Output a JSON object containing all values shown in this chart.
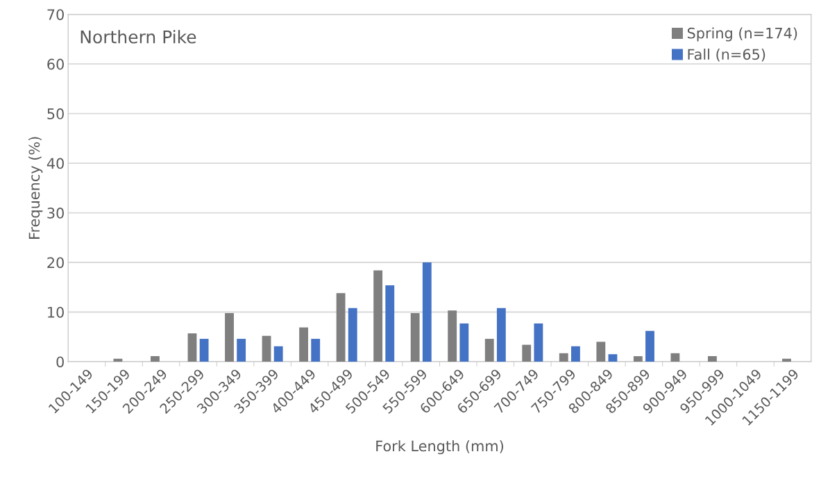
{
  "chart_data": {
    "type": "bar",
    "title": "Northern Pike",
    "xlabel": "Fork Length (mm)",
    "ylabel": "Frequency (%)",
    "categories": [
      "100-149",
      "150-199",
      "200-249",
      "250-299",
      "300-349",
      "350-399",
      "400-449",
      "450-499",
      "500-549",
      "550-599",
      "600-649",
      "650-699",
      "700-749",
      "750-799",
      "800-849",
      "850-899",
      "900-949",
      "950-999",
      "1000-1049",
      "1150-1199"
    ],
    "series": [
      {
        "name": "Spring (n=174)",
        "color": "#7f7f7f",
        "values": [
          0,
          0.6,
          1.1,
          5.7,
          9.8,
          5.2,
          6.9,
          13.8,
          18.4,
          9.8,
          10.3,
          4.6,
          3.4,
          1.7,
          4.0,
          1.1,
          1.7,
          1.1,
          0,
          0.6
        ]
      },
      {
        "name": "Fall (n=65)",
        "color": "#4472c4",
        "values": [
          0,
          0,
          0,
          4.6,
          4.6,
          3.1,
          4.6,
          10.8,
          15.4,
          20.0,
          7.7,
          10.8,
          7.7,
          3.1,
          1.5,
          6.2,
          0,
          0,
          0,
          0
        ]
      }
    ],
    "ylim": [
      0,
      70
    ],
    "yticks": [
      0,
      10,
      20,
      30,
      40,
      50,
      60,
      70
    ],
    "grid": "y",
    "legend": "top right"
  }
}
